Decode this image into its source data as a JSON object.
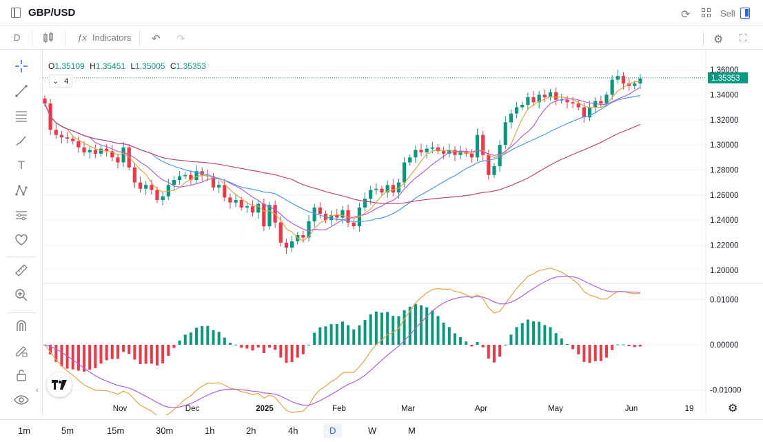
{
  "header": {
    "symbol": "GBP/USD",
    "sell_label": "Sell"
  },
  "toolbar": {
    "interval": "D",
    "indicators_label": "Indicators"
  },
  "legend": {
    "o_label": "O",
    "o_value": "1.35109",
    "h_label": "H",
    "h_value": "1.35451",
    "l_label": "L",
    "l_value": "1.35005",
    "c_label": "C",
    "c_value": "1.35353",
    "indicator_count": "4"
  },
  "left_tools": [
    "crosshair-icon",
    "trendline-icon",
    "fib-icon",
    "brush-icon",
    "text-icon",
    "pattern-icon",
    "forecast-icon",
    "heart-icon",
    "ruler-icon",
    "zoom-in-icon",
    "magnet-icon",
    "lock-draw-icon",
    "lock-icon",
    "eye-icon"
  ],
  "timeframes": [
    "1m",
    "5m",
    "15m",
    "30m",
    "1h",
    "2h",
    "4h",
    "D",
    "W",
    "M"
  ],
  "active_timeframe": "D",
  "colors": {
    "up": "#089981",
    "down": "#f23645",
    "ma_fast": "#e8a33d",
    "ma_mid": "#b05fd8",
    "ma_slow": "#4e9ae8",
    "ma_long": "#c2447a",
    "accent": "#2962ff"
  },
  "chart_data": [
    {
      "type": "candlestick",
      "title": "GBP/USD",
      "y_ticks": [
        "1.36000",
        "1.34000",
        "1.32000",
        "1.30000",
        "1.28000",
        "1.26000",
        "1.24000",
        "1.22000",
        "1.20000"
      ],
      "ylim": [
        1.19,
        1.365
      ],
      "x_labels": [
        "Nov",
        "Dec",
        "2025",
        "Feb",
        "Mar",
        "Apr",
        "May",
        "Jun",
        "19"
      ],
      "last_price": "1.35353",
      "close_approx": [
        1.333,
        1.312,
        1.308,
        1.306,
        1.305,
        1.303,
        1.298,
        1.294,
        1.296,
        1.293,
        1.297,
        1.295,
        1.29,
        1.286,
        1.298,
        1.282,
        1.27,
        1.265,
        1.268,
        1.264,
        1.256,
        1.259,
        1.268,
        1.272,
        1.275,
        1.276,
        1.272,
        1.279,
        1.276,
        1.275,
        1.266,
        1.268,
        1.258,
        1.254,
        1.256,
        1.25,
        1.251,
        1.246,
        1.253,
        1.235,
        1.252,
        1.238,
        1.222,
        1.218,
        1.223,
        1.228,
        1.226,
        1.239,
        1.25,
        1.245,
        1.24,
        1.244,
        1.242,
        1.248,
        1.238,
        1.235,
        1.25,
        1.257,
        1.264,
        1.265,
        1.262,
        1.268,
        1.262,
        1.27,
        1.286,
        1.29,
        1.296,
        1.294,
        1.297,
        1.298,
        1.295,
        1.293,
        1.296,
        1.292,
        1.295,
        1.293,
        1.29,
        1.308,
        1.292,
        1.276,
        1.283,
        1.3,
        1.318,
        1.325,
        1.33,
        1.332,
        1.338,
        1.334,
        1.34,
        1.338,
        1.342,
        1.336,
        1.336,
        1.334,
        1.333,
        1.33,
        1.322,
        1.33,
        1.335,
        1.333,
        1.34,
        1.352,
        1.355,
        1.349,
        1.347,
        1.349,
        1.353
      ],
      "sma_labels": [
        "fast",
        "mid",
        "slow",
        "long"
      ]
    },
    {
      "type": "macd",
      "y_ticks": [
        "0.01000",
        "0.00000",
        "-0.01000"
      ],
      "ylim": [
        -0.0125,
        0.0125
      ]
    }
  ]
}
